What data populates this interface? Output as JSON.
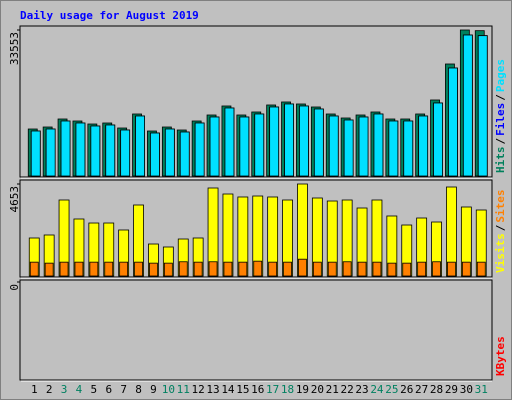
{
  "chart_data": {
    "type": "bar",
    "title": "Daily usage for August 2019",
    "categories": [
      "1",
      "2",
      "3",
      "4",
      "5",
      "6",
      "7",
      "8",
      "9",
      "10",
      "11",
      "12",
      "13",
      "14",
      "15",
      "16",
      "17",
      "18",
      "19",
      "20",
      "21",
      "22",
      "23",
      "24",
      "25",
      "26",
      "27",
      "28",
      "29",
      "30",
      "31"
    ],
    "category_colors": [
      "#000000",
      "#000000",
      "#008060",
      "#008060",
      "#000000",
      "#000000",
      "#000000",
      "#000000",
      "#000000",
      "#008060",
      "#008060",
      "#000000",
      "#000000",
      "#000000",
      "#000000",
      "#000000",
      "#008060",
      "#008060",
      "#000000",
      "#000000",
      "#000000",
      "#000000",
      "#000000",
      "#008060",
      "#008060",
      "#000000",
      "#000000",
      "#000000",
      "#000000",
      "#000000",
      "#008060"
    ],
    "separator": "/",
    "panels": [
      {
        "ylim": [
          0,
          33553
        ],
        "yticks": [
          33553
        ],
        "series": [
          {
            "name": "Hits",
            "color": "#00805c",
            "values": [
              10800,
              11260,
              13100,
              12640,
              11950,
              12180,
              11030,
              14250,
              10340,
              11260,
              10570,
              12640,
              14020,
              16090,
              14020,
              14710,
              16320,
              17010,
              16550,
              15860,
              14250,
              13330,
              14020,
              14710,
              13100,
              13100,
              14250,
              17470,
              25740,
              33553,
              33400
            ]
          },
          {
            "name": "Files",
            "color": "#0000ff",
            "values": [
              10340,
              10800,
              12640,
              12180,
              11490,
              11720,
              10570,
              13790,
              9880,
              10800,
              10110,
              12180,
              13560,
              15630,
              13560,
              14250,
              15860,
              16550,
              16090,
              15400,
              13790,
              12870,
              13560,
              14250,
              12640,
              12640,
              13790,
              16780,
              24820,
              32400,
              32250
            ]
          },
          {
            "name": "Pages",
            "color": "#00e0ff",
            "values": [
              10340,
              10800,
              12640,
              12180,
              11490,
              11720,
              10570,
              13790,
              9880,
              10800,
              10110,
              12180,
              13560,
              15630,
              13560,
              14250,
              15860,
              16550,
              16090,
              15400,
              13790,
              12870,
              13560,
              14250,
              12640,
              12640,
              13790,
              16780,
              24820,
              32400,
              32250
            ]
          }
        ]
      },
      {
        "ylim": [
          0,
          4653
        ],
        "yticks": [
          4653
        ],
        "series": [
          {
            "name": "Visits",
            "color": "#ffff00",
            "values": [
              1922,
              2074,
              3844,
              2883,
              2680,
              2680,
              2327,
              3591,
              1618,
              1467,
              1871,
              1922,
              4451,
              4147,
              3996,
              4046,
              3996,
              3844,
              4653,
              3945,
              3793,
              3844,
              3439,
              3844,
              3035,
              2579,
              2933,
              2731,
              4501,
              3490,
              3338
            ]
          },
          {
            "name": "Sites",
            "color": "#ff8000",
            "values": [
              700,
              650,
              700,
              700,
              700,
              700,
              700,
              700,
              650,
              650,
              720,
              700,
              720,
              700,
              700,
              750,
              700,
              700,
              850,
              700,
              700,
              720,
              700,
              700,
              650,
              650,
              700,
              720,
              700,
              700,
              700
            ]
          }
        ]
      },
      {
        "ylim": [
          0,
          1
        ],
        "yticks": [
          0
        ],
        "series": [
          {
            "name": "KBytes",
            "color": "#ff0000",
            "values": [
              0,
              0,
              0,
              0,
              0,
              0,
              0,
              0,
              0,
              0,
              0,
              0,
              0,
              0,
              0,
              0,
              0,
              0,
              0,
              0,
              0,
              0,
              0,
              0,
              0,
              0,
              0,
              0,
              0,
              0,
              0
            ]
          }
        ]
      }
    ]
  }
}
